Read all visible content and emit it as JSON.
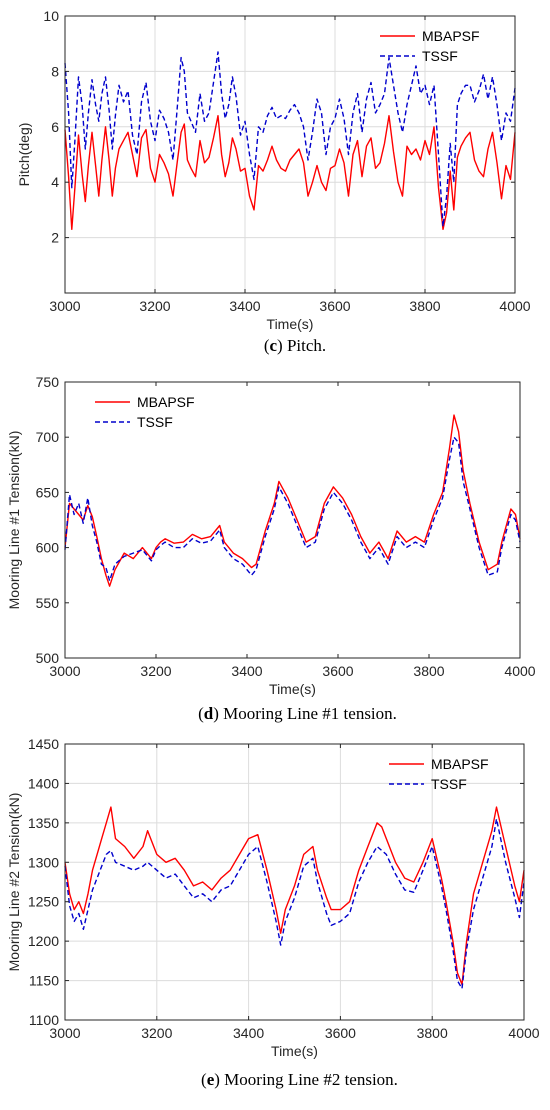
{
  "chart_data": [
    {
      "type": "line",
      "title": "",
      "xlabel": "Time(s)",
      "ylabel": "Pitch(deg)",
      "caption_letter": "c",
      "caption_rest": ") Pitch.",
      "xlim": [
        3000,
        4000
      ],
      "ylim": [
        0,
        10
      ],
      "xticks": [
        3000,
        3200,
        3400,
        3600,
        3800,
        4000
      ],
      "yticks": [
        2,
        4,
        6,
        8,
        10
      ],
      "grid": true,
      "legend_position": "top-right",
      "series": [
        {
          "name": "MBAPSF",
          "color": "#ff0000",
          "style": "solid",
          "x": [
            3000,
            3008,
            3015,
            3022,
            3030,
            3038,
            3045,
            3052,
            3060,
            3068,
            3075,
            3082,
            3090,
            3098,
            3105,
            3112,
            3120,
            3130,
            3140,
            3150,
            3160,
            3170,
            3180,
            3190,
            3200,
            3210,
            3220,
            3230,
            3240,
            3250,
            3258,
            3265,
            3272,
            3280,
            3290,
            3300,
            3310,
            3320,
            3330,
            3340,
            3348,
            3356,
            3364,
            3372,
            3380,
            3390,
            3400,
            3410,
            3420,
            3430,
            3440,
            3450,
            3460,
            3470,
            3480,
            3490,
            3500,
            3510,
            3520,
            3530,
            3540,
            3550,
            3560,
            3570,
            3580,
            3590,
            3600,
            3610,
            3620,
            3630,
            3640,
            3650,
            3660,
            3670,
            3680,
            3690,
            3700,
            3710,
            3720,
            3730,
            3740,
            3750,
            3760,
            3770,
            3780,
            3790,
            3800,
            3810,
            3820,
            3830,
            3840,
            3848,
            3856,
            3864,
            3872,
            3880,
            3890,
            3900,
            3910,
            3920,
            3930,
            3940,
            3950,
            3960,
            3970,
            3980,
            3990,
            4000
          ],
          "y": [
            5.9,
            4.2,
            2.3,
            3.8,
            5.7,
            4.3,
            3.3,
            4.6,
            5.8,
            4.6,
            3.5,
            4.8,
            6.0,
            4.8,
            3.5,
            4.5,
            5.2,
            5.5,
            5.8,
            5.0,
            4.2,
            5.6,
            5.9,
            4.5,
            4.0,
            5.0,
            4.7,
            4.3,
            3.5,
            4.8,
            5.8,
            6.1,
            4.8,
            4.5,
            4.2,
            5.5,
            4.7,
            4.9,
            5.6,
            6.4,
            5.0,
            4.2,
            4.7,
            5.6,
            5.2,
            4.4,
            4.5,
            3.5,
            3.0,
            4.6,
            4.4,
            4.8,
            5.3,
            4.8,
            4.5,
            4.4,
            4.8,
            5.0,
            5.2,
            4.7,
            3.5,
            4.0,
            4.6,
            4.0,
            3.7,
            4.5,
            4.6,
            5.2,
            4.7,
            3.5,
            5.0,
            5.5,
            4.2,
            5.3,
            5.6,
            4.5,
            4.7,
            5.4,
            6.4,
            5.1,
            4.0,
            3.5,
            5.3,
            5.0,
            5.2,
            4.8,
            5.5,
            5.0,
            6.0,
            3.8,
            2.3,
            2.9,
            4.4,
            3.0,
            4.9,
            5.3,
            5.6,
            5.8,
            4.8,
            4.4,
            4.2,
            5.2,
            5.8,
            4.7,
            3.4,
            4.6,
            4.1,
            5.8
          ]
        },
        {
          "name": "TSSF",
          "color": "#0000cc",
          "style": "dashed",
          "x": [
            3000,
            3008,
            3015,
            3022,
            3030,
            3038,
            3045,
            3052,
            3060,
            3068,
            3075,
            3082,
            3090,
            3098,
            3105,
            3112,
            3120,
            3130,
            3140,
            3150,
            3160,
            3170,
            3180,
            3190,
            3200,
            3210,
            3220,
            3230,
            3240,
            3250,
            3258,
            3265,
            3272,
            3280,
            3290,
            3300,
            3310,
            3320,
            3330,
            3340,
            3348,
            3356,
            3364,
            3372,
            3380,
            3390,
            3400,
            3410,
            3420,
            3430,
            3440,
            3450,
            3460,
            3470,
            3480,
            3490,
            3500,
            3510,
            3520,
            3530,
            3540,
            3550,
            3560,
            3570,
            3580,
            3590,
            3600,
            3610,
            3620,
            3630,
            3640,
            3650,
            3660,
            3670,
            3680,
            3690,
            3700,
            3710,
            3720,
            3730,
            3740,
            3750,
            3760,
            3770,
            3780,
            3790,
            3800,
            3810,
            3820,
            3830,
            3840,
            3848,
            3856,
            3864,
            3872,
            3880,
            3890,
            3900,
            3910,
            3920,
            3930,
            3940,
            3950,
            3960,
            3970,
            3980,
            3990,
            4000
          ],
          "y": [
            8.3,
            6.5,
            3.8,
            5.5,
            7.8,
            6.8,
            5.2,
            6.5,
            7.7,
            6.8,
            6.2,
            7.2,
            7.8,
            6.6,
            5.2,
            6.4,
            7.5,
            6.9,
            7.3,
            5.7,
            5.0,
            6.9,
            7.6,
            6.2,
            5.5,
            6.6,
            6.3,
            5.8,
            4.8,
            6.8,
            8.5,
            8.0,
            6.5,
            6.2,
            5.8,
            7.2,
            6.2,
            6.5,
            7.6,
            8.7,
            7.2,
            6.3,
            6.8,
            7.8,
            7.1,
            5.7,
            6.2,
            5.0,
            4.1,
            6.0,
            5.8,
            6.4,
            6.7,
            6.3,
            6.4,
            6.3,
            6.6,
            6.8,
            6.5,
            6.0,
            4.8,
            5.8,
            7.0,
            6.5,
            5.0,
            6.0,
            6.3,
            7.0,
            6.3,
            5.0,
            6.5,
            7.2,
            5.8,
            7.0,
            7.6,
            6.5,
            6.8,
            7.2,
            8.5,
            7.5,
            6.5,
            5.8,
            6.8,
            7.5,
            8.2,
            7.2,
            7.5,
            6.8,
            7.5,
            5.0,
            2.4,
            3.5,
            5.4,
            4.0,
            6.8,
            7.2,
            7.5,
            7.5,
            6.9,
            7.3,
            7.9,
            7.0,
            7.8,
            6.8,
            5.5,
            6.5,
            6.2,
            7.4
          ]
        }
      ]
    },
    {
      "type": "line",
      "title": "",
      "xlabel": "Time(s)",
      "ylabel": "Mooring Line #1 Tension(kN)",
      "caption_letter": "d",
      "caption_rest": ") Mooring Line #1 tension.",
      "xlim": [
        3000,
        4000
      ],
      "ylim": [
        500,
        750
      ],
      "xticks": [
        3000,
        3200,
        3400,
        3600,
        3800,
        4000
      ],
      "yticks": [
        500,
        550,
        600,
        650,
        700,
        750
      ],
      "grid": false,
      "legend_position": "top-left",
      "series": [
        {
          "name": "MBAPSF",
          "color": "#ff0000",
          "style": "solid",
          "x": [
            3000,
            3010,
            3020,
            3030,
            3040,
            3050,
            3060,
            3070,
            3080,
            3090,
            3098,
            3110,
            3130,
            3150,
            3170,
            3190,
            3200,
            3210,
            3220,
            3240,
            3260,
            3280,
            3300,
            3320,
            3340,
            3350,
            3370,
            3390,
            3410,
            3420,
            3440,
            3460,
            3470,
            3490,
            3510,
            3530,
            3550,
            3570,
            3590,
            3600,
            3610,
            3630,
            3650,
            3670,
            3690,
            3710,
            3730,
            3750,
            3770,
            3790,
            3810,
            3830,
            3845,
            3855,
            3865,
            3875,
            3890,
            3910,
            3930,
            3950,
            3960,
            3970,
            3980,
            3990,
            4000
          ],
          "y": [
            600,
            640,
            635,
            630,
            625,
            638,
            628,
            610,
            590,
            575,
            565,
            580,
            595,
            590,
            600,
            590,
            600,
            605,
            608,
            604,
            605,
            612,
            608,
            610,
            620,
            605,
            595,
            590,
            582,
            585,
            615,
            640,
            660,
            645,
            625,
            605,
            610,
            640,
            655,
            650,
            645,
            630,
            610,
            595,
            605,
            590,
            615,
            605,
            610,
            605,
            630,
            650,
            690,
            720,
            705,
            670,
            640,
            605,
            580,
            585,
            605,
            620,
            635,
            630,
            608
          ]
        },
        {
          "name": "TSSF",
          "color": "#0000cc",
          "style": "dashed",
          "x": [
            3000,
            3010,
            3020,
            3030,
            3040,
            3050,
            3060,
            3070,
            3080,
            3090,
            3098,
            3110,
            3130,
            3150,
            3170,
            3190,
            3200,
            3210,
            3220,
            3240,
            3260,
            3280,
            3300,
            3320,
            3340,
            3350,
            3370,
            3390,
            3410,
            3420,
            3440,
            3460,
            3470,
            3490,
            3510,
            3530,
            3550,
            3570,
            3590,
            3600,
            3610,
            3630,
            3650,
            3670,
            3690,
            3710,
            3730,
            3750,
            3770,
            3790,
            3810,
            3830,
            3845,
            3855,
            3865,
            3875,
            3890,
            3910,
            3930,
            3950,
            3960,
            3970,
            3980,
            3990,
            4000
          ],
          "y": [
            598,
            648,
            630,
            640,
            622,
            645,
            620,
            605,
            585,
            582,
            570,
            585,
            592,
            595,
            598,
            588,
            598,
            602,
            605,
            600,
            600,
            608,
            604,
            606,
            616,
            600,
            590,
            585,
            575,
            580,
            610,
            635,
            655,
            640,
            620,
            600,
            605,
            635,
            650,
            645,
            640,
            625,
            605,
            590,
            600,
            585,
            610,
            600,
            605,
            600,
            625,
            645,
            680,
            700,
            695,
            660,
            635,
            600,
            575,
            578,
            600,
            615,
            630,
            625,
            605
          ]
        }
      ]
    },
    {
      "type": "line",
      "title": "",
      "xlabel": "Time(s)",
      "ylabel": "Mooring Line #2 Tension(kN)",
      "caption_letter": "e",
      "caption_rest": ") Mooring Line #2 tension.",
      "xlim": [
        3000,
        4000
      ],
      "ylim": [
        1100,
        1450
      ],
      "xticks": [
        3000,
        3200,
        3400,
        3600,
        3800,
        4000
      ],
      "yticks": [
        1100,
        1150,
        1200,
        1250,
        1300,
        1350,
        1400,
        1450
      ],
      "grid": true,
      "legend_position": "top-right",
      "series": [
        {
          "name": "MBAPSF",
          "color": "#ff0000",
          "style": "solid",
          "x": [
            3000,
            3010,
            3020,
            3030,
            3040,
            3050,
            3060,
            3070,
            3080,
            3090,
            3100,
            3110,
            3130,
            3150,
            3170,
            3180,
            3200,
            3220,
            3240,
            3260,
            3280,
            3300,
            3320,
            3340,
            3360,
            3380,
            3400,
            3420,
            3440,
            3460,
            3470,
            3480,
            3500,
            3520,
            3540,
            3550,
            3570,
            3580,
            3600,
            3620,
            3640,
            3660,
            3680,
            3690,
            3700,
            3720,
            3740,
            3760,
            3780,
            3800,
            3820,
            3830,
            3845,
            3855,
            3865,
            3875,
            3890,
            3910,
            3930,
            3940,
            3960,
            3980,
            3990,
            4000
          ],
          "y": [
            1300,
            1260,
            1240,
            1250,
            1235,
            1260,
            1290,
            1310,
            1330,
            1350,
            1370,
            1330,
            1320,
            1305,
            1320,
            1340,
            1310,
            1300,
            1305,
            1290,
            1270,
            1275,
            1265,
            1280,
            1290,
            1310,
            1330,
            1335,
            1290,
            1240,
            1210,
            1240,
            1270,
            1310,
            1320,
            1290,
            1255,
            1240,
            1240,
            1250,
            1290,
            1320,
            1350,
            1345,
            1330,
            1300,
            1280,
            1275,
            1300,
            1330,
            1280,
            1250,
            1200,
            1160,
            1145,
            1200,
            1260,
            1300,
            1340,
            1370,
            1320,
            1270,
            1250,
            1290
          ]
        },
        {
          "name": "TSSF",
          "color": "#0000cc",
          "style": "dashed",
          "x": [
            3000,
            3010,
            3020,
            3030,
            3040,
            3050,
            3060,
            3070,
            3080,
            3090,
            3100,
            3110,
            3130,
            3150,
            3170,
            3180,
            3200,
            3220,
            3240,
            3260,
            3280,
            3300,
            3320,
            3340,
            3360,
            3380,
            3400,
            3420,
            3440,
            3460,
            3470,
            3480,
            3500,
            3520,
            3540,
            3550,
            3570,
            3580,
            3600,
            3620,
            3640,
            3660,
            3680,
            3690,
            3700,
            3720,
            3740,
            3760,
            3780,
            3800,
            3820,
            3830,
            3845,
            3855,
            3865,
            3875,
            3890,
            3910,
            3930,
            3940,
            3960,
            3980,
            3990,
            4000
          ],
          "y": [
            1295,
            1245,
            1225,
            1235,
            1215,
            1240,
            1265,
            1280,
            1295,
            1310,
            1315,
            1300,
            1295,
            1290,
            1295,
            1300,
            1290,
            1280,
            1285,
            1270,
            1255,
            1260,
            1250,
            1265,
            1270,
            1290,
            1310,
            1320,
            1275,
            1225,
            1195,
            1225,
            1255,
            1295,
            1305,
            1275,
            1235,
            1220,
            1225,
            1235,
            1275,
            1300,
            1320,
            1315,
            1310,
            1285,
            1265,
            1262,
            1290,
            1320,
            1270,
            1240,
            1190,
            1150,
            1140,
            1190,
            1240,
            1280,
            1320,
            1355,
            1300,
            1255,
            1230,
            1275
          ]
        }
      ]
    }
  ]
}
